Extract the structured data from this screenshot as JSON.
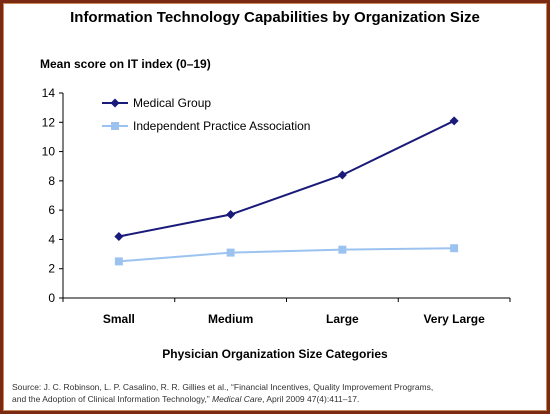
{
  "chart_data": {
    "type": "line",
    "title": "Information Technology Capabilities by Organization Size",
    "ylabel": "Mean score on IT index (0–19)",
    "xlabel": "Physician Organization Size Categories",
    "categories": [
      "Small",
      "Medium",
      "Large",
      "Very Large"
    ],
    "ylim": [
      0,
      14
    ],
    "yticks": [
      "0",
      "2",
      "4",
      "6",
      "8",
      "10",
      "12",
      "14"
    ],
    "grid": false,
    "legend_position": "top-left",
    "series": [
      {
        "name": "Medical Group",
        "values": [
          4.2,
          5.7,
          8.4,
          12.1
        ],
        "color": "#1a1a7a",
        "marker": "diamond"
      },
      {
        "name": "Independent Practice Association",
        "values": [
          2.5,
          3.1,
          3.3,
          3.4
        ],
        "color": "#9cc3f0",
        "marker": "square"
      }
    ]
  },
  "source": {
    "line1": "Source: J. C. Robinson, L. P. Casalino, R. R. Gillies et al., “Financial Incentives, Quality Improvement Programs,",
    "line2_pre": "and the Adoption of Clinical Information Technology,” ",
    "journal": "Medical Care",
    "line2_post": ", April 2009 47(4):411–17."
  }
}
